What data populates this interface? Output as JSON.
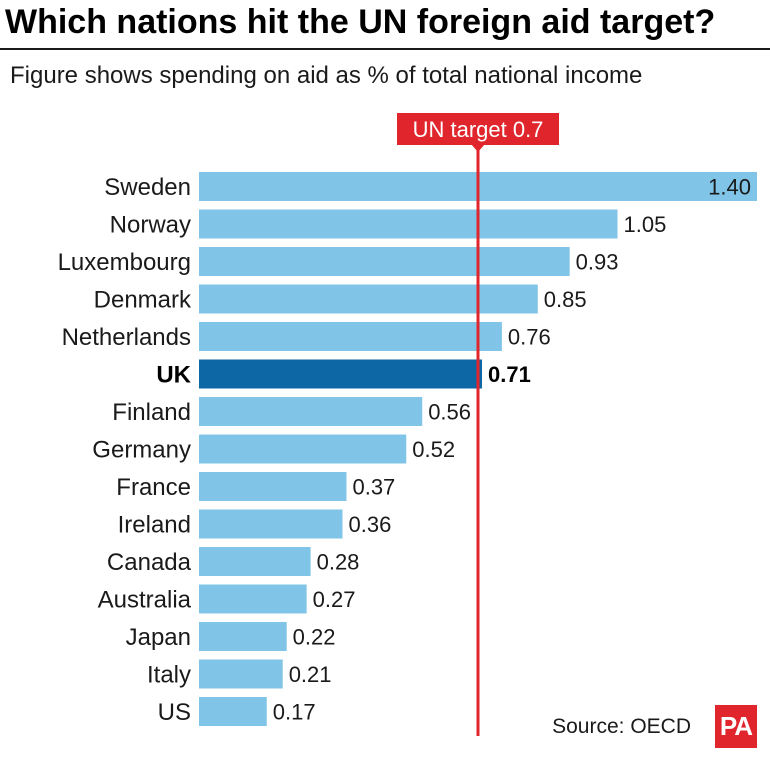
{
  "chart_data": {
    "type": "bar",
    "orientation": "horizontal",
    "title": "Which nations hit the UN foreign aid target?",
    "subtitle": "Figure shows spending on aid as % of total national income",
    "categories": [
      "Sweden",
      "Norway",
      "Luxembourg",
      "Denmark",
      "Netherlands",
      "UK",
      "Finland",
      "Germany",
      "France",
      "Ireland",
      "Canada",
      "Australia",
      "Japan",
      "Italy",
      "US"
    ],
    "values": [
      1.4,
      1.05,
      0.93,
      0.85,
      0.76,
      0.71,
      0.56,
      0.52,
      0.37,
      0.36,
      0.28,
      0.27,
      0.22,
      0.21,
      0.17
    ],
    "value_labels": [
      "1.40",
      "1.05",
      "0.93",
      "0.85",
      "0.76",
      "0.71",
      "0.56",
      "0.52",
      "0.37",
      "0.36",
      "0.28",
      "0.27",
      "0.22",
      "0.21",
      "0.17"
    ],
    "highlight_index": 5,
    "reference_line": {
      "value": 0.7,
      "label": "UN target 0.7"
    },
    "xlim": [
      0,
      1.4
    ],
    "grid": false,
    "source": "Source: OECD"
  },
  "logo": {
    "text": "PA"
  },
  "colors": {
    "bar": "#80c4e7",
    "highlight_bar": "#0c67a4",
    "target": "#e0262c",
    "logo": "#e0262c"
  }
}
